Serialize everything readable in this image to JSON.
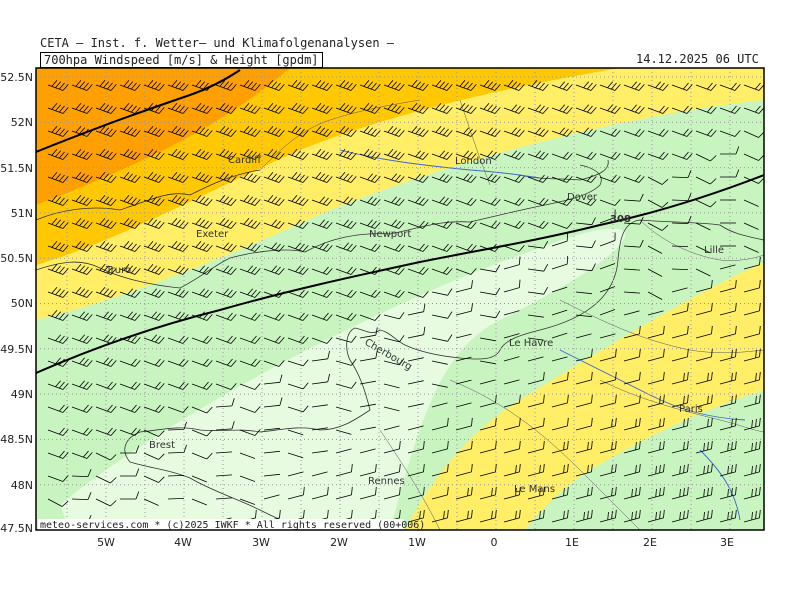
{
  "header": {
    "organization": "CETA — Inst. f. Wetter— und Klimafolgenanalysen —",
    "product": "700hpa Windspeed [m/s] & Height [gpdm]",
    "datetime": "14.12.2025 06 UTC"
  },
  "map": {
    "region": "English Channel / Northern France",
    "lat_range": [
      47.5,
      52.5
    ],
    "lon_range": [
      -6,
      3.4
    ],
    "lat_labels": [
      "52.5N",
      "52N",
      "51.5N",
      "51N",
      "50.5N",
      "50N",
      "49.5N",
      "49N",
      "48.5N",
      "48N",
      "47.5N"
    ],
    "lon_labels": [
      "5W",
      "4W",
      "3W",
      "2W",
      "1W",
      "0",
      "1E",
      "2E",
      "3E"
    ],
    "cities": [
      {
        "name": "Cardiff"
      },
      {
        "name": "London"
      },
      {
        "name": "Dover"
      },
      {
        "name": "Exeter"
      },
      {
        "name": "Newport"
      },
      {
        "name": "Truro"
      },
      {
        "name": "Lille"
      },
      {
        "name": "Cherbourg"
      },
      {
        "name": "Le Havre"
      },
      {
        "name": "Paris"
      },
      {
        "name": "Brest"
      },
      {
        "name": "Rennes"
      },
      {
        "name": "Le Mans"
      }
    ],
    "contour_label": "308",
    "shading_colors": {
      "weakest": "#e6fbe0",
      "weak": "#c8f5bf",
      "moderate": "#ffee66",
      "strong": "#ffc800",
      "strongest": "#ff9f00"
    },
    "grid": "dotted"
  },
  "footer": {
    "credit": "meteo-services.com * (c)2025 IWKF * All rights reserved (00+006)"
  }
}
